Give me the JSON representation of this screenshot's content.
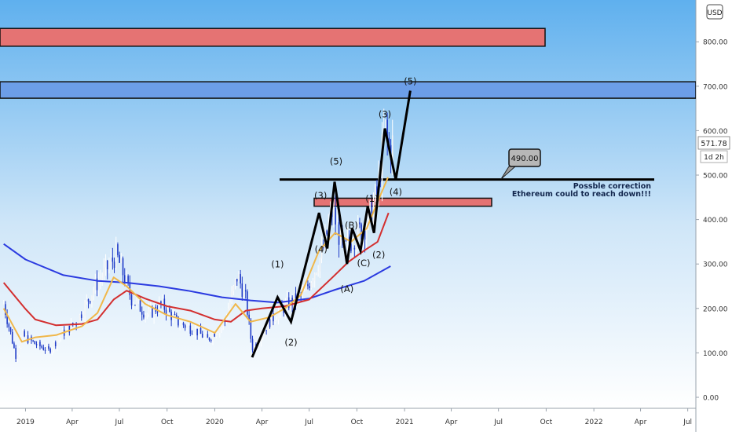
{
  "chart_data": {
    "type": "candlestick",
    "currency_badge": "USD",
    "price_axis_ticks": [
      "800.00",
      "700.00",
      "600.00",
      "500.00",
      "400.00",
      "300.00",
      "200.00",
      "100.00",
      "0.00"
    ],
    "time_axis_ticks": [
      "2019",
      "Apr",
      "Jul",
      "Oct",
      "2020",
      "Apr",
      "Jul",
      "Oct",
      "2021",
      "Apr",
      "Jul",
      "Oct",
      "2022",
      "Apr",
      "Jul"
    ],
    "last_price": "571.78",
    "countdown": "1d 2h",
    "target_label": "490.00",
    "annotation": [
      "Possble correction",
      "Ethereum could to reach down!!!"
    ],
    "wave_labels": [
      "(1)",
      "(2)",
      "(3)",
      "(4)",
      "(5)",
      "(1)",
      "(2)",
      "(3)",
      "(4)",
      "(5)",
      "(A)",
      "(B)",
      "(C)"
    ],
    "zones": [
      {
        "kind": "resistance",
        "low": 790,
        "high": 830,
        "color": "#e57373"
      },
      {
        "kind": "resistance",
        "low": 673,
        "high": 710,
        "color": "#6c9ee8"
      },
      {
        "kind": "resistance",
        "low": 430,
        "high": 448,
        "color": "#e57373"
      }
    ],
    "horizontal_level": 490,
    "wave_path": [
      {
        "date": "2020-03-13",
        "price": 90
      },
      {
        "date": "2020-05-01",
        "price": 225
      },
      {
        "date": "2020-05-27",
        "price": 170
      },
      {
        "date": "2020-07-20",
        "price": 415
      },
      {
        "date": "2020-08-05",
        "price": 335
      },
      {
        "date": "2020-08-19",
        "price": 485
      },
      {
        "date": "2020-09-12",
        "price": 300
      },
      {
        "date": "2020-09-22",
        "price": 380
      },
      {
        "date": "2020-10-08",
        "price": 330
      },
      {
        "date": "2020-10-22",
        "price": 430
      },
      {
        "date": "2020-11-03",
        "price": 370
      },
      {
        "date": "2020-11-24",
        "price": 605
      },
      {
        "date": "2020-12-15",
        "price": 490
      },
      {
        "date": "2021-01-12",
        "price": 690
      }
    ],
    "series": [
      {
        "color": "#2b3be0",
        "values": [
          {
            "date": "2018-11-20",
            "price": 345
          },
          {
            "date": "2019-01-01",
            "price": 310
          },
          {
            "date": "2019-03-15",
            "price": 275
          },
          {
            "date": "2019-05-20",
            "price": 262
          },
          {
            "date": "2019-07-15",
            "price": 258
          },
          {
            "date": "2019-09-15",
            "price": 250
          },
          {
            "date": "2019-11-10",
            "price": 240
          },
          {
            "date": "2020-01-15",
            "price": 225
          },
          {
            "date": "2020-03-10",
            "price": 218
          },
          {
            "date": "2020-05-01",
            "price": 213
          },
          {
            "date": "2020-07-01",
            "price": 222
          },
          {
            "date": "2020-08-20",
            "price": 242
          },
          {
            "date": "2020-10-15",
            "price": 262
          },
          {
            "date": "2020-12-05",
            "price": 295
          }
        ]
      },
      {
        "color": "#d32f2f",
        "values": [
          {
            "date": "2018-11-20",
            "price": 258
          },
          {
            "date": "2018-12-31",
            "price": 200
          },
          {
            "date": "2019-01-20",
            "price": 175
          },
          {
            "date": "2019-03-01",
            "price": 162
          },
          {
            "date": "2019-04-20",
            "price": 165
          },
          {
            "date": "2019-05-20",
            "price": 175
          },
          {
            "date": "2019-06-20",
            "price": 220
          },
          {
            "date": "2019-07-15",
            "price": 240
          },
          {
            "date": "2019-08-20",
            "price": 222
          },
          {
            "date": "2019-10-01",
            "price": 205
          },
          {
            "date": "2019-11-15",
            "price": 195
          },
          {
            "date": "2020-01-01",
            "price": 175
          },
          {
            "date": "2020-02-01",
            "price": 170
          },
          {
            "date": "2020-03-01",
            "price": 195
          },
          {
            "date": "2020-04-01",
            "price": 200
          },
          {
            "date": "2020-05-15",
            "price": 205
          },
          {
            "date": "2020-07-01",
            "price": 220
          },
          {
            "date": "2020-08-15",
            "price": 270
          },
          {
            "date": "2020-09-15",
            "price": 305
          },
          {
            "date": "2020-10-15",
            "price": 330
          },
          {
            "date": "2020-11-10",
            "price": 350
          },
          {
            "date": "2020-12-01",
            "price": 415
          }
        ]
      },
      {
        "color": "#f0b74a",
        "values": [
          {
            "date": "2018-11-20",
            "price": 200
          },
          {
            "date": "2018-12-25",
            "price": 125
          },
          {
            "date": "2019-01-20",
            "price": 135
          },
          {
            "date": "2019-03-01",
            "price": 140
          },
          {
            "date": "2019-04-20",
            "price": 160
          },
          {
            "date": "2019-05-20",
            "price": 190
          },
          {
            "date": "2019-06-20",
            "price": 270
          },
          {
            "date": "2019-07-15",
            "price": 250
          },
          {
            "date": "2019-08-20",
            "price": 210
          },
          {
            "date": "2019-10-01",
            "price": 185
          },
          {
            "date": "2019-11-15",
            "price": 170
          },
          {
            "date": "2020-01-01",
            "price": 145
          },
          {
            "date": "2020-02-10",
            "price": 210
          },
          {
            "date": "2020-03-10",
            "price": 170
          },
          {
            "date": "2020-04-15",
            "price": 180
          },
          {
            "date": "2020-05-15",
            "price": 200
          },
          {
            "date": "2020-06-15",
            "price": 230
          },
          {
            "date": "2020-07-20",
            "price": 330
          },
          {
            "date": "2020-08-20",
            "price": 370
          },
          {
            "date": "2020-09-20",
            "price": 350
          },
          {
            "date": "2020-10-20",
            "price": 380
          },
          {
            "date": "2020-11-10",
            "price": 440
          },
          {
            "date": "2020-11-30",
            "price": 495
          }
        ]
      }
    ],
    "price_path": [
      {
        "date": "2018-11-20",
        "price": 210
      },
      {
        "date": "2018-12-14",
        "price": 90
      },
      {
        "date": "2018-12-25",
        "price": 140
      },
      {
        "date": "2019-01-20",
        "price": 120
      },
      {
        "date": "2019-02-15",
        "price": 105
      },
      {
        "date": "2019-03-10",
        "price": 140
      },
      {
        "date": "2019-04-10",
        "price": 170
      },
      {
        "date": "2019-05-15",
        "price": 250
      },
      {
        "date": "2019-06-25",
        "price": 320
      },
      {
        "date": "2019-07-05",
        "price": 290
      },
      {
        "date": "2019-07-25",
        "price": 220
      },
      {
        "date": "2019-08-25",
        "price": 185
      },
      {
        "date": "2019-09-20",
        "price": 210
      },
      {
        "date": "2019-10-20",
        "price": 170
      },
      {
        "date": "2019-11-25",
        "price": 150
      },
      {
        "date": "2019-12-18",
        "price": 130
      },
      {
        "date": "2020-01-20",
        "price": 170
      },
      {
        "date": "2020-02-14",
        "price": 275
      },
      {
        "date": "2020-03-01",
        "price": 220
      },
      {
        "date": "2020-03-13",
        "price": 110
      },
      {
        "date": "2020-04-15",
        "price": 170
      },
      {
        "date": "2020-05-20",
        "price": 210
      },
      {
        "date": "2020-06-20",
        "price": 230
      },
      {
        "date": "2020-07-25",
        "price": 320
      },
      {
        "date": "2020-08-15",
        "price": 420
      },
      {
        "date": "2020-09-05",
        "price": 330
      },
      {
        "date": "2020-09-25",
        "price": 360
      },
      {
        "date": "2020-10-20",
        "price": 390
      },
      {
        "date": "2020-11-10",
        "price": 460
      },
      {
        "date": "2020-11-24",
        "price": 610
      },
      {
        "date": "2020-12-01",
        "price": 560
      },
      {
        "date": "2020-12-10",
        "price": 572
      }
    ]
  }
}
